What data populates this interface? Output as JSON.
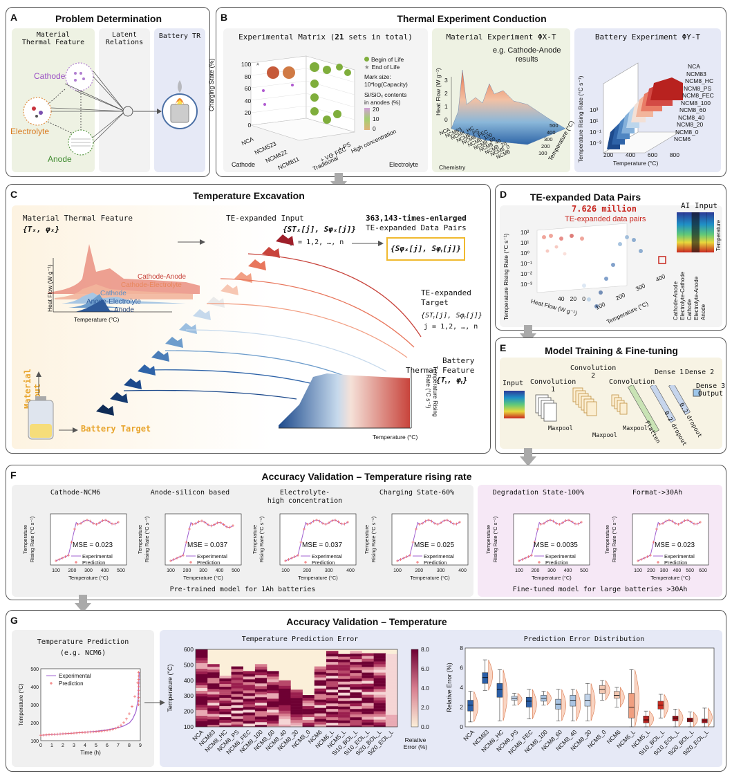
{
  "panels": {
    "A": {
      "letter": "A",
      "title": "Problem Determination",
      "col1": "Material\nThermal Feature",
      "col2": "Latent\nRelations",
      "col3": "Battery TR",
      "cathode": "Cathode",
      "electrolyte": "Electrolyte",
      "anode": "Anode"
    },
    "B": {
      "letter": "B",
      "title": "Thermal Experiment Conduction",
      "matrix_title_pre": "Experimental Matrix (",
      "matrix_title_num": "21",
      "matrix_title_post": " sets in total)",
      "legend_bol": "Begin of Life",
      "legend_eol": "End of Life",
      "mark_size": "Mark size:",
      "mark_size2": "10*log(Capacity)",
      "si_label": "Si/SiOₓ contents\nin anodes (%)",
      "si_ticks": [
        "20",
        "10",
        "0"
      ],
      "ylabel": "Charging State (%)",
      "yticks": [
        "100",
        "80",
        "60",
        "40",
        "20",
        "0"
      ],
      "cathodes": [
        "NCA",
        "NCM523",
        "NCM622",
        "NCM811"
      ],
      "cathode_label": "Cathode",
      "electrolytes": [
        "High concentration",
        "+ PS",
        "+ FEC",
        "+ VC",
        "Traditional"
      ],
      "electrolyte_label": "Electrolyte",
      "mat_title": "Material Experiment ΦX-T",
      "mat_note": "e.g. Cathode-Anode\nresults",
      "mat_ylabel": "Heat Flow (W g⁻¹)",
      "mat_yticks": [
        "3",
        "2",
        "1",
        "0"
      ],
      "mat_chem": [
        "NCA",
        "NCM83",
        "NCM8_HC",
        "NCM8_PS",
        "NCM8_FEC",
        "NCM8_100",
        "NCM8_60",
        "NCM8_40",
        "NCM8_20",
        "NCM8_0",
        "NCM6"
      ],
      "mat_chem_label": "Chemistry",
      "mat_temp_label": "Temperature (°C)",
      "mat_temp_ticks": [
        "500",
        "400",
        "300",
        "200",
        "100"
      ],
      "bat_title": "Battery Experiment ΦY-T",
      "bat_ylabel": "Temperature Rising Rate (°C s⁻¹)",
      "bat_yticks": [
        "10³",
        "10¹",
        "10⁻¹",
        "10⁻³"
      ],
      "bat_xlabel": "Temperature (°C)",
      "bat_xticks": [
        "200",
        "400",
        "600",
        "800"
      ],
      "bat_chem": [
        "NCA",
        "NCM83",
        "NCM8_HC",
        "NCM8_PS",
        "NCM8_FEC",
        "NCM8_100",
        "NCM8_60",
        "NCM8_40",
        "NCM8_20",
        "NCM8_0",
        "NCM6"
      ]
    },
    "C": {
      "letter": "C",
      "title": "Temperature Excavation",
      "mtf": "Material Thermal Feature",
      "mtf_sym": "{Tₓ, φₓ}",
      "curves": [
        "Cathode-Anode",
        "Cathode-Electrolyte",
        "Cathode",
        "Anode-Electrolyte",
        "Anode"
      ],
      "hf_label": "Heat Flow (W g⁻¹)",
      "temp_label": "Temperature (°C)",
      "te_input": "TE-expanded Input",
      "te_input_sym": "{STₓ[j], Sφₓ[j]}",
      "j_range": "j = 1,2, …, n",
      "enlarged_num": "363,143-times-enlarged",
      "te_pairs": "TE-expanded Data Pairs",
      "pairs_sym": "{Sφₓ[j], Sφᵧ[j]}",
      "te_target": "TE-expanded\nTarget",
      "te_target_sym": "{STᵧ[j], Sφᵧ[j]}",
      "j_range2": "j = 1,2, …, n",
      "btf": "Battery\nThermal Feature",
      "btf_sym": "{Tᵧ, φᵧ}",
      "mat_input": "Material\nInput",
      "bat_target": "Battery Target",
      "rate_label": "Temperature Rising\nRate (°C s⁻¹)"
    },
    "D": {
      "letter": "D",
      "title": "TE-expanded Data Pairs",
      "million": "7.626 million",
      "pairs": "TE-expanded data pairs",
      "ai_input": "AI Input",
      "ylabel": "Temperature Rising Rate (°C s⁻¹)",
      "yticks": [
        "10²",
        "10¹",
        "10⁰",
        "10⁻¹",
        "10⁻²",
        "10⁻³"
      ],
      "hf_label": "Heat Flow (W g⁻¹)",
      "hf_ticks": [
        "40",
        "20",
        "0"
      ],
      "temp_label": "Temperature (°C)",
      "temp_ticks": [
        "100",
        "200",
        "300",
        "400"
      ],
      "ai_rows": [
        "Temperature",
        "Anode",
        "Electrolyte-Anode",
        "Cathode",
        "Electrolyte-Cathode",
        "Cathode-Anode"
      ]
    },
    "E": {
      "letter": "E",
      "title": "Model Training & Fine-tuning",
      "input": "Input",
      "conv1": "Convolution\n1",
      "conv2": "Convolution\n2",
      "conv3": "Convolution\n3",
      "maxpool": "Maxpool",
      "flatten": "Flatten",
      "dense1": "Dense 1",
      "dense2": "Dense 2",
      "dense3": "Dense 3\nOutput",
      "dropout": "0.2 dropout"
    },
    "F": {
      "letter": "F",
      "title": "Accuracy Validation – Temperature rising rate",
      "pre_label": "Pre-trained model for 1Ah batteries",
      "fine_label": "Fine-tuned model for large batteries >30Ah",
      "legend_exp": "Experimental",
      "legend_pred": "Prediction",
      "ylabel": "Temperature\nRising Rate (°C s⁻¹)",
      "xlabel": "Temperature (°C)",
      "plots": [
        {
          "title": "Cathode-NCM6",
          "mse": "MSE = 0.023",
          "xticks": [
            "100",
            "200",
            "300",
            "400",
            "500"
          ]
        },
        {
          "title": "Anode-silicon based",
          "mse": "MSE = 0.037",
          "xticks": [
            "100",
            "200",
            "300",
            "400",
            "500"
          ]
        },
        {
          "title": "Electrolyte-\nhigh concentration",
          "mse": "MSE = 0.037",
          "xticks": [
            "100",
            "200",
            "300",
            "400"
          ]
        },
        {
          "title": "Charging State-60%",
          "mse": "MSE = 0.025",
          "xticks": [
            "100",
            "200",
            "300",
            "400"
          ]
        },
        {
          "title": "Degradation State-100%",
          "mse": "MSE = 0.0035",
          "xticks": [
            "100",
            "200",
            "300",
            "400",
            "500"
          ]
        },
        {
          "title": "Format->30Ah",
          "mse": "MSE = 0.023",
          "xticks": [
            "100",
            "200",
            "300",
            "400",
            "500",
            "600"
          ]
        }
      ]
    },
    "G": {
      "letter": "G",
      "title": "Accuracy Validation – Temperature",
      "tp_title": "Temperature Prediction",
      "tp_sub": "(e.g. NCM6)",
      "tp_ylabel": "Temperature (°C)",
      "tp_xlabel": "Time (h)",
      "tp_yticks": [
        "500",
        "400",
        "300",
        "200",
        "100"
      ],
      "tp_xticks": [
        "0",
        "1",
        "2",
        "3",
        "4",
        "5",
        "6",
        "7",
        "8",
        "9"
      ],
      "legend_exp": "Experimental",
      "legend_pred": "Prediction",
      "err_title": "Temperature Prediction Error",
      "err_ylabel": "Temperature (°C)",
      "err_yticks": [
        "600",
        "500",
        "400",
        "300",
        "200",
        "100"
      ],
      "cbar_ticks": [
        "8.0",
        "6.0",
        "4.0",
        "2.0",
        "0.0"
      ],
      "cbar_label": "Relative\nError (%)",
      "dist_title": "Prediction Error Distribution",
      "dist_ylabel": "Relative Error (%)",
      "dist_yticks": [
        "8",
        "6",
        "4",
        "2",
        "0"
      ],
      "categories_err": [
        "NCA",
        "NCM83",
        "NCM8_HC",
        "NCM8_PS",
        "NCM8_FEC",
        "NCM8_100",
        "NCM8_60",
        "NCM8_40",
        "NCM8_20",
        "NCM8_0",
        "NCM6",
        "NCM6_L",
        "NCM5_L",
        "Si10_BOL_L",
        "Si10_EOL_L",
        "Si20_BOL_L",
        "Si20_EOL_L"
      ],
      "categories_dist": [
        "NCA",
        "NCM83",
        "NCM8_HC",
        "NCM8_PS",
        "NCM8_FEC",
        "NCM8_100",
        "NCM8_60",
        "NCM8_40",
        "NCM8_20",
        "NCM8_0",
        "NCM6",
        "NCM6_L",
        "NCM5_L",
        "Si10_BOL_L",
        "Si10_EOL_L",
        "Si20_BOL_L",
        "Si20_EOL_L"
      ]
    }
  },
  "chart_data": [
    {
      "type": "box",
      "title": "Prediction Error Distribution",
      "ylabel": "Relative Error (%)",
      "ylim": [
        0,
        8
      ],
      "categories": [
        "NCA",
        "NCM83",
        "NCM8_HC",
        "NCM8_PS",
        "NCM8_FEC",
        "NCM8_100",
        "NCM8_60",
        "NCM8_40",
        "NCM8_20",
        "NCM8_0",
        "NCM6",
        "NCM6_L",
        "NCM5_L",
        "Si10_BOL_L",
        "Si10_EOL_L",
        "Si20_BOL_L",
        "Si20_EOL_L"
      ],
      "medians": [
        2.2,
        5.0,
        3.8,
        2.9,
        2.6,
        2.9,
        2.3,
        2.7,
        2.7,
        3.8,
        3.2,
        2.0,
        0.7,
        2.2,
        0.9,
        0.7,
        0.6
      ],
      "q1": [
        1.6,
        4.4,
        3.0,
        2.7,
        2.0,
        2.6,
        1.8,
        2.1,
        2.1,
        3.4,
        2.9,
        0.9,
        0.4,
        1.8,
        0.6,
        0.5,
        0.4
      ],
      "q3": [
        2.7,
        5.5,
        4.4,
        3.1,
        3.0,
        3.2,
        2.8,
        3.2,
        3.3,
        4.2,
        3.6,
        3.4,
        1.1,
        2.6,
        1.1,
        0.9,
        0.8
      ],
      "lo": [
        0.5,
        3.7,
        0.6,
        2.2,
        0.8,
        2.2,
        0.6,
        0.6,
        0.6,
        2.7,
        2.0,
        0.0,
        0.0,
        0.9,
        0.0,
        0.0,
        0.0
      ],
      "hi": [
        3.6,
        6.8,
        5.8,
        3.4,
        3.8,
        3.6,
        3.8,
        3.8,
        4.4,
        4.7,
        4.0,
        5.8,
        1.6,
        3.3,
        1.8,
        1.5,
        1.9
      ],
      "colors": [
        "#2b5fa8",
        "#2b5fa8",
        "#2b5fa8",
        "#c2d4ea",
        "#2b5fa8",
        "#a9c4e2",
        "#a9c4e2",
        "#a9c4e2",
        "#c2d4ea",
        "#f2c7b1",
        "#f2c7b1",
        "#f09f80",
        "#b8211f",
        "#cb2e23",
        "#a2151e",
        "#a2151e",
        "#a2151e"
      ]
    },
    {
      "type": "heatmap",
      "title": "Temperature Prediction Error",
      "ylabel": "Temperature (°C)",
      "ylim": [
        100,
        600
      ],
      "clim": [
        0,
        8
      ],
      "categories": [
        "NCA",
        "NCM83",
        "NCM8_HC",
        "NCM8_PS",
        "NCM8_FEC",
        "NCM8_100",
        "NCM8_60",
        "NCM8_40",
        "NCM8_20",
        "NCM8_0",
        "NCM6",
        "NCM6_L",
        "NCM5_L",
        "Si10_BOL_L",
        "Si10_EOL_L",
        "Si20_BOL_L",
        "Si20_EOL_L"
      ],
      "top_temp": [
        600,
        505,
        430,
        490,
        460,
        505,
        460,
        400,
        340,
        305,
        490,
        590,
        570,
        590,
        575,
        575,
        570
      ]
    },
    {
      "type": "line",
      "title": "Temperature Prediction",
      "xlabel": "Time (h)",
      "ylabel": "Temperature (°C)",
      "xlim": [
        0,
        9
      ],
      "ylim": [
        100,
        500
      ],
      "x": [
        0,
        1,
        2,
        3,
        4,
        5,
        6,
        7,
        7.5,
        8,
        8.3,
        8.6,
        8.8,
        8.9
      ],
      "y": [
        130,
        134,
        138,
        142,
        147,
        152,
        160,
        172,
        182,
        198,
        220,
        260,
        330,
        480
      ]
    }
  ]
}
